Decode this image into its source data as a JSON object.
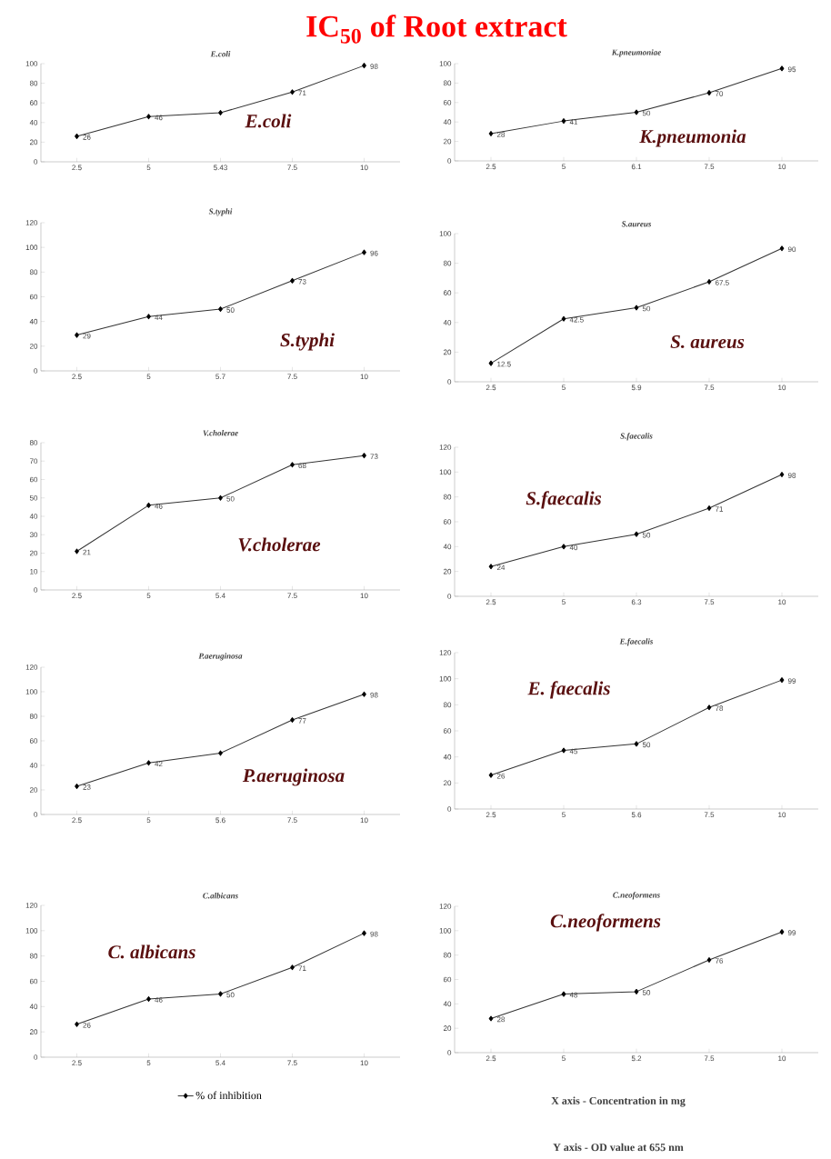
{
  "chart_data": [
    {
      "type": "line",
      "title": "E.coli",
      "categories": [
        "2.5",
        "5",
        "5.43",
        "7.5",
        "10"
      ],
      "series": [
        {
          "color": "#333333",
          "values": [
            26,
            46,
            50,
            71,
            98
          ],
          "value_labels": [
            "26",
            "46",
            null,
            "71",
            "98"
          ]
        }
      ],
      "ylim": [
        0,
        100
      ],
      "yticks": [
        0,
        20,
        40,
        60,
        80,
        100
      ],
      "marker": "diamond",
      "annotations": [
        "IC$_{50}$ of Root extract",
        "E.coli"
      ]
    },
    {
      "type": "line",
      "title": "K.pneumoniae",
      "categories": [
        "2.5",
        "5",
        "6.1",
        "7.5",
        "10"
      ],
      "series": [
        {
          "color": "#333333",
          "values": [
            28,
            41,
            50,
            70,
            95
          ]
        }
      ],
      "ylim": [
        0,
        100
      ],
      "yticks": [
        0,
        20,
        40,
        60,
        80,
        100
      ],
      "marker": "diamond",
      "data_labels": true,
      "annotations": [
        "K.pneumonia"
      ]
    },
    {
      "type": "line",
      "title": "S.typhi",
      "categories": [
        "2.5",
        "5",
        "5.7",
        "7.5",
        "10"
      ],
      "series": [
        {
          "color": "#333333",
          "values": [
            29,
            44,
            50,
            73,
            96
          ]
        }
      ],
      "ylim": [
        0,
        120
      ],
      "yticks": [
        0,
        20,
        40,
        60,
        80,
        100,
        120
      ],
      "marker": "diamond",
      "data_labels": true,
      "annotations": [
        "S.typhi"
      ]
    },
    {
      "type": "line",
      "title": "S.aureus",
      "categories": [
        "2.5",
        "5",
        "5.9",
        "7.5",
        "10"
      ],
      "series": [
        {
          "color": "#333333",
          "values": [
            12.5,
            42.5,
            50,
            67.5,
            90
          ]
        }
      ],
      "ylim": [
        0,
        100
      ],
      "yticks": [
        0,
        20,
        40,
        60,
        80,
        100
      ],
      "marker": "diamond",
      "data_labels": true,
      "annotations": [
        "S. aureus"
      ]
    },
    {
      "type": "line",
      "title": "V.cholerae",
      "categories": [
        "2.5",
        "5",
        "5.4",
        "7.5",
        "10"
      ],
      "series": [
        {
          "color": "#333333",
          "values": [
            21,
            46,
            50,
            68,
            73
          ]
        }
      ],
      "ylim": [
        0,
        80
      ],
      "yticks": [
        0,
        10,
        20,
        30,
        40,
        50,
        60,
        70,
        80
      ],
      "marker": "diamond",
      "data_labels": true,
      "annotations": [
        "V.cholerae"
      ]
    },
    {
      "type": "line",
      "title": "S.faecalis",
      "categories": [
        "2.5",
        "5",
        "6.3",
        "7.5",
        "10"
      ],
      "series": [
        {
          "color": "#333333",
          "values": [
            24,
            40,
            50,
            71,
            98
          ]
        }
      ],
      "ylim": [
        0,
        120
      ],
      "yticks": [
        0,
        20,
        40,
        60,
        80,
        100,
        120
      ],
      "marker": "diamond",
      "data_labels": true,
      "annotations": [
        "S.faecalis"
      ]
    },
    {
      "type": "line",
      "title": "P.aeruginosa",
      "categories": [
        "2.5",
        "5",
        "5.6",
        "7.5",
        "10"
      ],
      "series": [
        {
          "color": "#333333",
          "values": [
            23,
            42,
            50,
            77,
            98
          ],
          "value_labels": [
            "23",
            "42",
            null,
            "77",
            "98"
          ]
        }
      ],
      "ylim": [
        0,
        120
      ],
      "yticks": [
        0,
        20,
        40,
        60,
        80,
        100,
        120
      ],
      "marker": "diamond",
      "annotations": [
        "P.aeruginosa"
      ]
    },
    {
      "type": "line",
      "title": "E.faecalis",
      "categories": [
        "2.5",
        "5",
        "5.6",
        "7.5",
        "10"
      ],
      "series": [
        {
          "color": "#333333",
          "values": [
            26,
            45,
            50,
            78,
            99
          ]
        }
      ],
      "ylim": [
        0,
        120
      ],
      "yticks": [
        0,
        20,
        40,
        60,
        80,
        100,
        120
      ],
      "marker": "diamond",
      "data_labels": true,
      "annotations": [
        "E. faecalis"
      ]
    },
    {
      "type": "line",
      "title": "C.albicans",
      "categories": [
        "2.5",
        "5",
        "5.4",
        "7.5",
        "10"
      ],
      "series": [
        {
          "name": "% of inhibition",
          "color": "#333333",
          "values": [
            26,
            46,
            50,
            71,
            98
          ]
        }
      ],
      "ylim": [
        0,
        120
      ],
      "yticks": [
        0,
        20,
        40,
        60,
        80,
        100,
        120
      ],
      "marker": "diamond",
      "data_labels": true,
      "legend": "bottom",
      "annotations": [
        "C. albicans"
      ]
    },
    {
      "type": "line",
      "title": "C.neoformens",
      "categories": [
        "2.5",
        "5",
        "5.2",
        "7.5",
        "10"
      ],
      "series": [
        {
          "color": "#333333",
          "values": [
            28,
            48,
            50,
            76,
            99
          ]
        }
      ],
      "ylim": [
        0,
        120
      ],
      "yticks": [
        0,
        20,
        40,
        60,
        80,
        100,
        120
      ],
      "marker": "diamond",
      "data_labels": true,
      "annotations": [
        "C.neoformens",
        "X axis - Concentration in mg",
        "Y axis - OD value at 655 nm"
      ]
    }
  ]
}
